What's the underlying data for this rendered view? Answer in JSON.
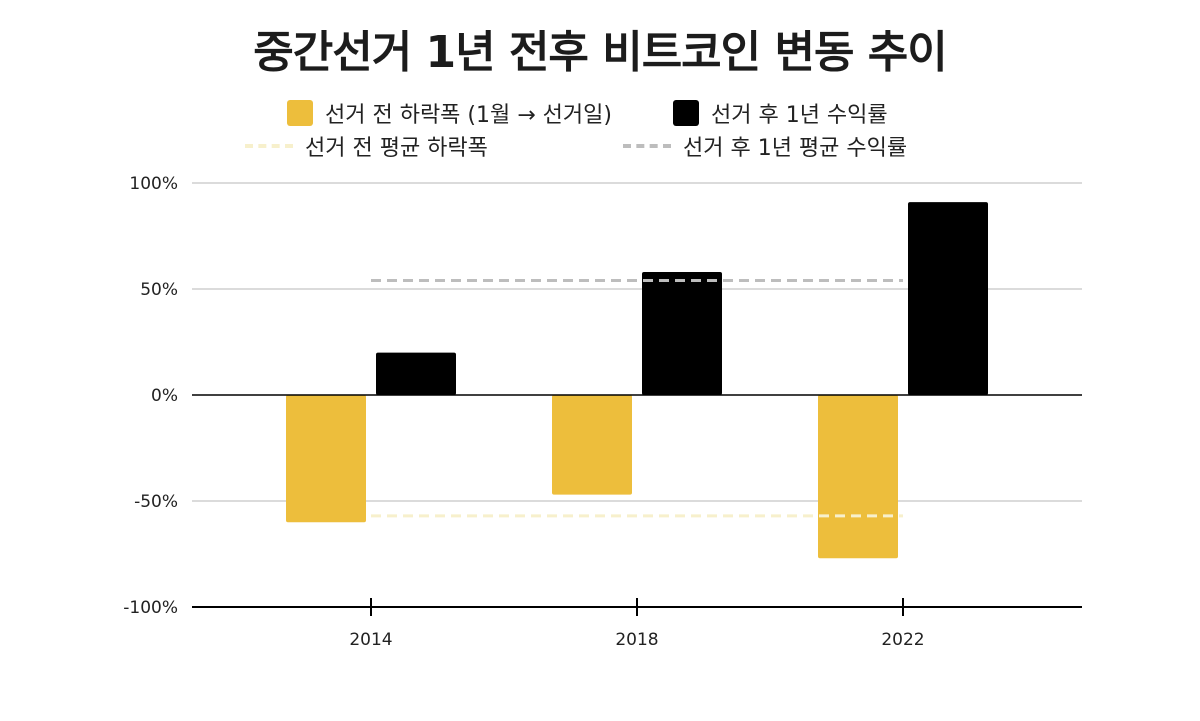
{
  "chart_data": {
    "type": "bar",
    "title": "중간선거 1년 전후 비트코인 변동 추이",
    "categories": [
      "2014",
      "2018",
      "2022"
    ],
    "series": [
      {
        "name": "선거 전 하락폭 (1월 → 선거일)",
        "color": "#EDBE3C",
        "values": [
          -60,
          -47,
          -77
        ]
      },
      {
        "name": "선거 후 1년 수익률",
        "color": "#000000",
        "values": [
          20,
          58,
          91
        ]
      }
    ],
    "reference_lines": [
      {
        "name": "선거 전 평균 하락폭",
        "value": -57,
        "color": "#F7F0CC"
      },
      {
        "name": "선거 후 1년 평균 수익률",
        "value": 54,
        "color": "#BDBDBD"
      }
    ],
    "y_ticks": [
      "100%",
      "50%",
      "0%",
      "-50%",
      "-100%"
    ],
    "y_tick_values": [
      100,
      50,
      0,
      -50,
      -100
    ],
    "ylim": [
      -100,
      100
    ],
    "xlabel": "",
    "ylabel": "",
    "grid": true,
    "legend_position": "top"
  }
}
